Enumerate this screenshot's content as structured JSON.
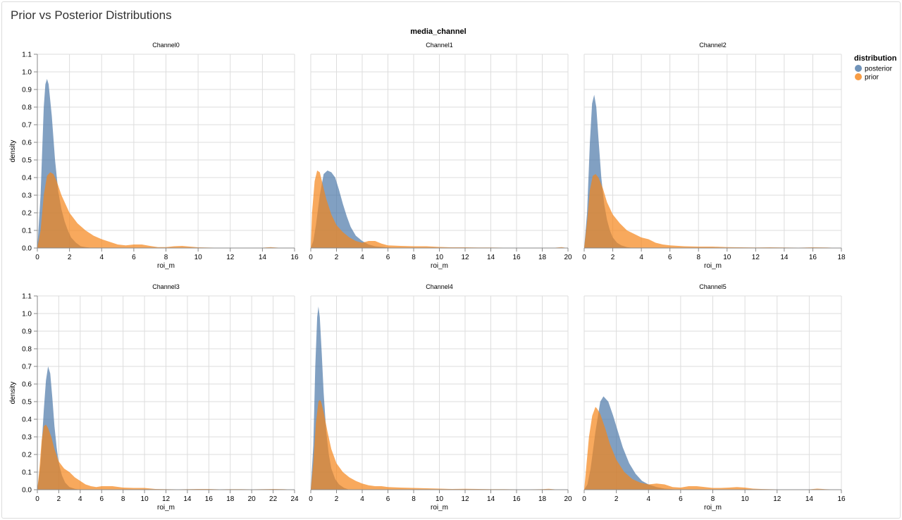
{
  "page": {
    "title": "Prior vs Posterior Distributions"
  },
  "chart_data": {
    "type": "area",
    "title": "Prior vs Posterior Distributions",
    "facet_label": "media_channel",
    "xlabel": "roi_m",
    "ylabel": "density",
    "grid": true,
    "legend": {
      "title": "distribution",
      "position": "top-right",
      "entries": [
        {
          "name": "posterior",
          "color": "#4c78a8"
        },
        {
          "name": "prior",
          "color": "#f58518"
        }
      ]
    },
    "ylim": [
      0,
      1.1
    ],
    "yticks": [
      0,
      0.1,
      0.2,
      0.3,
      0.4,
      0.5,
      0.6,
      0.7,
      0.8,
      0.9,
      1.0,
      1.1
    ],
    "panels": [
      {
        "name": "Channel0",
        "xlim": [
          0,
          16
        ],
        "xticks": [
          0,
          2,
          4,
          6,
          8,
          10,
          12,
          14,
          16
        ],
        "series": [
          {
            "name": "posterior",
            "x": [
              0,
              0.2,
              0.4,
              0.5,
              0.6,
              0.7,
              0.9,
              1.1,
              1.3,
              1.5,
              1.7,
              1.9,
              2.1,
              2.4,
              2.7,
              3,
              3.5
            ],
            "y": [
              0,
              0.3,
              0.8,
              0.93,
              0.96,
              0.93,
              0.75,
              0.5,
              0.32,
              0.22,
              0.15,
              0.1,
              0.06,
              0.03,
              0.01,
              0.005,
              0
            ]
          },
          {
            "name": "prior",
            "x": [
              0,
              0.2,
              0.4,
              0.6,
              0.8,
              1.0,
              1.2,
              1.5,
              2,
              2.5,
              3,
              3.5,
              4,
              4.5,
              5,
              5.5,
              6,
              6.5,
              7,
              7.5,
              8,
              8.5,
              9,
              9.5,
              10,
              11,
              12,
              13,
              14,
              14.5,
              15,
              16
            ],
            "y": [
              0,
              0.1,
              0.3,
              0.41,
              0.43,
              0.42,
              0.38,
              0.3,
              0.2,
              0.14,
              0.1,
              0.07,
              0.05,
              0.035,
              0.02,
              0.015,
              0.02,
              0.02,
              0.012,
              0.005,
              0.005,
              0.01,
              0.012,
              0.008,
              0.004,
              0.002,
              0.001,
              0.001,
              0.002,
              0.005,
              0.002,
              0
            ]
          }
        ]
      },
      {
        "name": "Channel1",
        "xlim": [
          0,
          20
        ],
        "xticks": [
          0,
          2,
          4,
          6,
          8,
          10,
          12,
          14,
          16,
          18,
          20
        ],
        "series": [
          {
            "name": "posterior",
            "x": [
              0,
              0.2,
              0.4,
              0.7,
              1.0,
              1.3,
              1.6,
              1.9,
              2.2,
              2.5,
              2.8,
              3.1,
              3.5,
              4,
              4.5,
              5,
              6,
              7
            ],
            "y": [
              0,
              0.04,
              0.13,
              0.3,
              0.42,
              0.44,
              0.43,
              0.4,
              0.33,
              0.25,
              0.18,
              0.12,
              0.07,
              0.04,
              0.02,
              0.01,
              0.003,
              0
            ]
          },
          {
            "name": "prior",
            "x": [
              0,
              0.1,
              0.3,
              0.5,
              0.7,
              0.9,
              1.2,
              1.6,
              2,
              2.5,
              3,
              3.5,
              4,
              4.5,
              5,
              5.5,
              6,
              7,
              8,
              9,
              10,
              11,
              12,
              13,
              14,
              15,
              16,
              17,
              18,
              19,
              19.5,
              20
            ],
            "y": [
              0,
              0.2,
              0.38,
              0.44,
              0.43,
              0.37,
              0.28,
              0.19,
              0.13,
              0.09,
              0.06,
              0.04,
              0.03,
              0.04,
              0.04,
              0.025,
              0.015,
              0.012,
              0.01,
              0.01,
              0.006,
              0.004,
              0.004,
              0.003,
              0.003,
              0.002,
              0.002,
              0.002,
              0.002,
              0.002,
              0.005,
              0
            ]
          }
        ]
      },
      {
        "name": "Channel2",
        "xlim": [
          0,
          18
        ],
        "xticks": [
          0,
          2,
          4,
          6,
          8,
          10,
          12,
          14,
          16,
          18
        ],
        "series": [
          {
            "name": "posterior",
            "x": [
              0,
              0.2,
              0.4,
              0.55,
              0.7,
              0.85,
              1.0,
              1.2,
              1.4,
              1.6,
              1.8,
              2.0,
              2.3,
              2.6,
              3,
              3.5
            ],
            "y": [
              0,
              0.2,
              0.6,
              0.82,
              0.87,
              0.8,
              0.62,
              0.4,
              0.25,
              0.16,
              0.1,
              0.06,
              0.03,
              0.015,
              0.005,
              0
            ]
          },
          {
            "name": "prior",
            "x": [
              0,
              0.2,
              0.4,
              0.6,
              0.8,
              1.0,
              1.3,
              1.6,
              2,
              2.5,
              3,
              3.5,
              4,
              4.5,
              5,
              5.5,
              6,
              7,
              8,
              9,
              10,
              11,
              12,
              13,
              14,
              15,
              16,
              17,
              18
            ],
            "y": [
              0,
              0.15,
              0.33,
              0.41,
              0.42,
              0.4,
              0.34,
              0.26,
              0.19,
              0.14,
              0.1,
              0.08,
              0.06,
              0.05,
              0.03,
              0.02,
              0.015,
              0.01,
              0.008,
              0.008,
              0.005,
              0.004,
              0.003,
              0.004,
              0.003,
              0.002,
              0.004,
              0.003,
              0
            ]
          }
        ]
      },
      {
        "name": "Channel3",
        "xlim": [
          0,
          24
        ],
        "xticks": [
          0,
          2,
          4,
          6,
          8,
          10,
          12,
          14,
          16,
          18,
          20,
          22,
          24
        ],
        "series": [
          {
            "name": "posterior",
            "x": [
              0,
              0.3,
              0.6,
              0.8,
              1.0,
              1.2,
              1.4,
              1.6,
              1.8,
              2.0,
              2.3,
              2.6,
              3,
              3.5,
              4
            ],
            "y": [
              0,
              0.15,
              0.45,
              0.62,
              0.7,
              0.66,
              0.52,
              0.36,
              0.24,
              0.15,
              0.08,
              0.04,
              0.015,
              0.005,
              0
            ]
          },
          {
            "name": "prior",
            "x": [
              0,
              0.2,
              0.4,
              0.6,
              0.8,
              1.0,
              1.3,
              1.6,
              2,
              2.5,
              3,
              3.5,
              4,
              4.5,
              5,
              5.5,
              6,
              7,
              8,
              9,
              10,
              11,
              12,
              13,
              14,
              15,
              16,
              17,
              18,
              19,
              20,
              21,
              22,
              23,
              24
            ],
            "y": [
              0,
              0.12,
              0.28,
              0.36,
              0.37,
              0.35,
              0.3,
              0.23,
              0.16,
              0.12,
              0.1,
              0.07,
              0.05,
              0.03,
              0.02,
              0.015,
              0.02,
              0.02,
              0.012,
              0.01,
              0.01,
              0.004,
              0.003,
              0.002,
              0.003,
              0.004,
              0.004,
              0.002,
              0.003,
              0.003,
              0.002,
              0.003,
              0.004,
              0.003,
              0
            ]
          }
        ]
      },
      {
        "name": "Channel4",
        "xlim": [
          0,
          20
        ],
        "xticks": [
          0,
          2,
          4,
          6,
          8,
          10,
          12,
          14,
          16,
          18,
          20
        ],
        "series": [
          {
            "name": "posterior",
            "x": [
              0,
              0.2,
              0.35,
              0.5,
              0.6,
              0.7,
              0.85,
              1.0,
              1.2,
              1.4,
              1.6,
              1.9,
              2.2,
              2.6,
              3
            ],
            "y": [
              0,
              0.25,
              0.7,
              0.98,
              1.04,
              0.98,
              0.78,
              0.55,
              0.33,
              0.2,
              0.12,
              0.06,
              0.03,
              0.01,
              0
            ]
          },
          {
            "name": "prior",
            "x": [
              0,
              0.2,
              0.4,
              0.6,
              0.7,
              0.8,
              1.0,
              1.3,
              1.6,
              2,
              2.5,
              3,
              3.5,
              4,
              4.5,
              5,
              5.5,
              6,
              7,
              8,
              9,
              10,
              11,
              12,
              13,
              14,
              15,
              16,
              17,
              18,
              18.5,
              19,
              20
            ],
            "y": [
              0,
              0.15,
              0.38,
              0.5,
              0.51,
              0.5,
              0.44,
              0.33,
              0.23,
              0.15,
              0.1,
              0.07,
              0.05,
              0.035,
              0.025,
              0.02,
              0.02,
              0.015,
              0.012,
              0.01,
              0.008,
              0.006,
              0.004,
              0.005,
              0.004,
              0.003,
              0.003,
              0.002,
              0.002,
              0.003,
              0.005,
              0.002,
              0
            ]
          }
        ]
      },
      {
        "name": "Channel5",
        "xlim": [
          0,
          16
        ],
        "xticks": [
          0,
          2,
          4,
          6,
          8,
          10,
          12,
          14,
          16
        ],
        "series": [
          {
            "name": "posterior",
            "x": [
              0,
              0.2,
              0.4,
              0.7,
              1.0,
              1.2,
              1.5,
              1.8,
              2.1,
              2.4,
              2.8,
              3.2,
              3.6,
              4,
              4.5,
              5,
              6
            ],
            "y": [
              0,
              0.03,
              0.12,
              0.33,
              0.5,
              0.53,
              0.5,
              0.42,
              0.33,
              0.24,
              0.15,
              0.09,
              0.05,
              0.03,
              0.015,
              0.006,
              0
            ]
          },
          {
            "name": "prior",
            "x": [
              0,
              0.1,
              0.3,
              0.5,
              0.7,
              0.8,
              1.0,
              1.3,
              1.6,
              2,
              2.5,
              3,
              3.5,
              4,
              4.5,
              5,
              5.5,
              6,
              6.5,
              7,
              7.5,
              8,
              8.5,
              9,
              9.5,
              10,
              10.5,
              11,
              12,
              13,
              14,
              14.5,
              15,
              16
            ],
            "y": [
              0,
              0.1,
              0.3,
              0.42,
              0.47,
              0.46,
              0.43,
              0.35,
              0.26,
              0.17,
              0.1,
              0.06,
              0.04,
              0.03,
              0.035,
              0.03,
              0.015,
              0.012,
              0.02,
              0.02,
              0.015,
              0.01,
              0.01,
              0.012,
              0.015,
              0.012,
              0.006,
              0.004,
              0.002,
              0.002,
              0.002,
              0.006,
              0.003,
              0
            ]
          }
        ]
      }
    ]
  }
}
